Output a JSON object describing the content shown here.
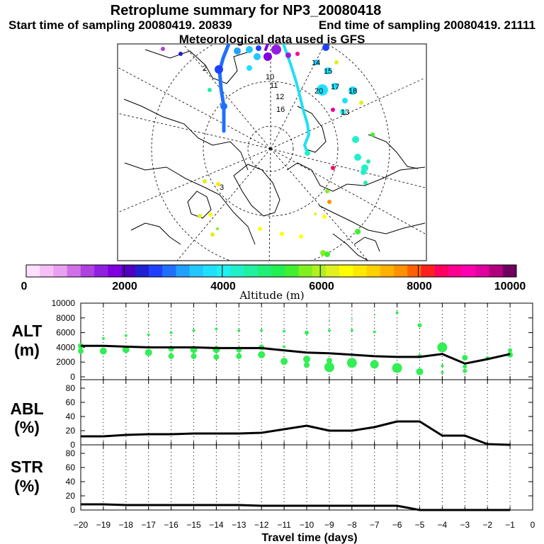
{
  "header": {
    "title": "Retroplume summary for NP3_20080418",
    "start_label": "Start time of sampling 20080419. 20839",
    "end_label": "End time of sampling 20080419. 21111",
    "met_label": "Meteorological data used is GFS"
  },
  "map": {
    "labels": [
      "2",
      "10",
      "11",
      "12",
      "13",
      "14",
      "15",
      "16",
      "17",
      "18",
      "20",
      "3"
    ]
  },
  "colorbar": {
    "label": "Altitude (m)",
    "ticks": [
      "0",
      "2000",
      "4000",
      "6000",
      "8000",
      "10000"
    ],
    "colors": [
      "#ffe0ff",
      "#f5c0f5",
      "#e8a0f0",
      "#d070e8",
      "#b040e0",
      "#9020e0",
      "#8000e0",
      "#5000c0",
      "#2020d0",
      "#2040ff",
      "#2070ff",
      "#20a0ff",
      "#20c8ff",
      "#20e0ff",
      "#20f0f0",
      "#20f0c8",
      "#20f0a0",
      "#20f078",
      "#20f050",
      "#40f030",
      "#80f020",
      "#b0f020",
      "#e0f020",
      "#ffff00",
      "#ffe800",
      "#ffd000",
      "#ffb000",
      "#ff9000",
      "#ff6000",
      "#ff2020",
      "#ff0060",
      "#ff0090",
      "#ff00b0",
      "#e000a0",
      "#b00080",
      "#700060"
    ]
  },
  "chart_data": [
    {
      "type": "line",
      "panel": "ALT",
      "ylabel": [
        "ALT",
        "(m)"
      ],
      "ylim": [
        0,
        10000
      ],
      "yticks": [
        "0",
        "2000",
        "4000",
        "6000",
        "8000",
        "10000"
      ],
      "x": [
        -20,
        -19,
        -18,
        -17,
        -16,
        -15,
        -14,
        -13,
        -12,
        -11,
        -10,
        -9,
        -8,
        -7,
        -6,
        -5,
        -4,
        -3,
        -2,
        -1
      ],
      "values": [
        4200,
        4200,
        4100,
        4000,
        4000,
        4000,
        3900,
        3900,
        3900,
        3600,
        3300,
        3200,
        3000,
        2800,
        2700,
        2700,
        3100,
        1800,
        2400,
        3100
      ],
      "scatter": {
        "color": "#33ee55",
        "points": [
          {
            "x": -20,
            "y": 4200,
            "s": 4
          },
          {
            "x": -20,
            "y": 3500,
            "s": 4
          },
          {
            "x": -19,
            "y": 5200,
            "s": 2
          },
          {
            "x": -19,
            "y": 3500,
            "s": 5
          },
          {
            "x": -18,
            "y": 5600,
            "s": 2
          },
          {
            "x": -18,
            "y": 3700,
            "s": 5
          },
          {
            "x": -17,
            "y": 5700,
            "s": 2
          },
          {
            "x": -17,
            "y": 3300,
            "s": 5
          },
          {
            "x": -16,
            "y": 6000,
            "s": 2
          },
          {
            "x": -16,
            "y": 3800,
            "s": 4
          },
          {
            "x": -16,
            "y": 2800,
            "s": 4
          },
          {
            "x": -15,
            "y": 6300,
            "s": 2
          },
          {
            "x": -15,
            "y": 3700,
            "s": 5
          },
          {
            "x": -15,
            "y": 2800,
            "s": 4
          },
          {
            "x": -14,
            "y": 6500,
            "s": 2
          },
          {
            "x": -14,
            "y": 3700,
            "s": 5
          },
          {
            "x": -14,
            "y": 2700,
            "s": 4
          },
          {
            "x": -13,
            "y": 6300,
            "s": 2
          },
          {
            "x": -13,
            "y": 3700,
            "s": 4
          },
          {
            "x": -13,
            "y": 2800,
            "s": 4
          },
          {
            "x": -12,
            "y": 6300,
            "s": 2
          },
          {
            "x": -12,
            "y": 4000,
            "s": 4
          },
          {
            "x": -12,
            "y": 3000,
            "s": 5
          },
          {
            "x": -11,
            "y": 6200,
            "s": 2
          },
          {
            "x": -11,
            "y": 4100,
            "s": 2
          },
          {
            "x": -11,
            "y": 2100,
            "s": 5
          },
          {
            "x": -10,
            "y": 6000,
            "s": 3
          },
          {
            "x": -10,
            "y": 2400,
            "s": 5
          },
          {
            "x": -10,
            "y": 1600,
            "s": 4
          },
          {
            "x": -9,
            "y": 7700,
            "s": 1
          },
          {
            "x": -9,
            "y": 6300,
            "s": 2
          },
          {
            "x": -9,
            "y": 2200,
            "s": 4
          },
          {
            "x": -9,
            "y": 1300,
            "s": 7
          },
          {
            "x": -8,
            "y": 7800,
            "s": 1
          },
          {
            "x": -8,
            "y": 6300,
            "s": 2
          },
          {
            "x": -8,
            "y": 1900,
            "s": 7
          },
          {
            "x": -7,
            "y": 8400,
            "s": 1
          },
          {
            "x": -7,
            "y": 6100,
            "s": 2
          },
          {
            "x": -7,
            "y": 1700,
            "s": 6
          },
          {
            "x": -6,
            "y": 8700,
            "s": 2
          },
          {
            "x": -6,
            "y": 1200,
            "s": 7
          },
          {
            "x": -5,
            "y": 7000,
            "s": 3
          },
          {
            "x": -5,
            "y": 2800,
            "s": 3
          },
          {
            "x": -5,
            "y": 700,
            "s": 5
          },
          {
            "x": -4,
            "y": 4000,
            "s": 7
          },
          {
            "x": -4,
            "y": 1500,
            "s": 2
          },
          {
            "x": -4,
            "y": 600,
            "s": 2
          },
          {
            "x": -3,
            "y": 2600,
            "s": 4
          },
          {
            "x": -3,
            "y": 1400,
            "s": 3
          },
          {
            "x": -3,
            "y": 800,
            "s": 3
          },
          {
            "x": -2,
            "y": 2500,
            "s": 3
          },
          {
            "x": -1,
            "y": 3600,
            "s": 3
          },
          {
            "x": -1,
            "y": 3000,
            "s": 4
          }
        ]
      }
    },
    {
      "type": "line",
      "panel": "ABL",
      "ylabel": [
        "ABL",
        "(%)"
      ],
      "ylim": [
        0,
        90
      ],
      "yticks": [
        "0",
        "20",
        "40",
        "60",
        "80"
      ],
      "x": [
        -20,
        -19,
        -18,
        -17,
        -16,
        -15,
        -14,
        -13,
        -12,
        -11,
        -10,
        -9,
        -8,
        -7,
        -6,
        -5,
        -4,
        -3,
        -2,
        -1
      ],
      "values": [
        12,
        12,
        14,
        15,
        15,
        16,
        16,
        16,
        17,
        22,
        27,
        20,
        20,
        25,
        33,
        33,
        13,
        13,
        1,
        0
      ]
    },
    {
      "type": "line",
      "panel": "STR",
      "ylabel": [
        "STR",
        "(%)"
      ],
      "ylim": [
        0,
        90
      ],
      "yticks": [
        "0",
        "20",
        "40",
        "60",
        "80"
      ],
      "x": [
        -20,
        -19,
        -18,
        -17,
        -16,
        -15,
        -14,
        -13,
        -12,
        -11,
        -10,
        -9,
        -8,
        -7,
        -6,
        -5,
        -4,
        -3,
        -2,
        -1
      ],
      "values": [
        8,
        8,
        7,
        7,
        7,
        7,
        7,
        7,
        6,
        6,
        6,
        6,
        6,
        6,
        6,
        0,
        0,
        0,
        0,
        0
      ]
    }
  ],
  "xaxis": {
    "label": "Travel time (days)",
    "range": [
      -20,
      0
    ],
    "ticks": [
      "−20",
      "−19",
      "−18",
      "−17",
      "−16",
      "−15",
      "−14",
      "−13",
      "−12",
      "−11",
      "−10",
      "−9",
      "−8",
      "−7",
      "−6",
      "−5",
      "−4",
      "−3",
      "−2",
      "−1",
      "0"
    ]
  }
}
